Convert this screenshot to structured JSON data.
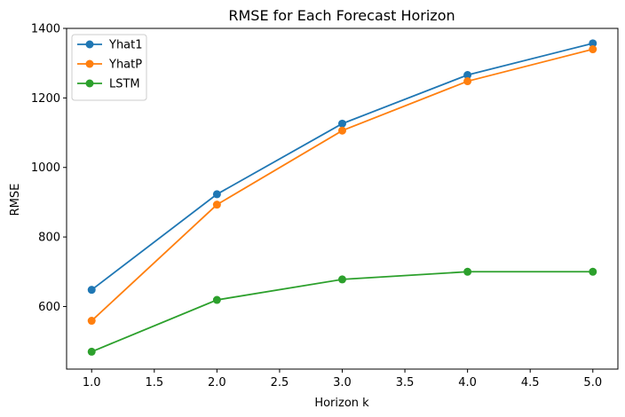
{
  "chart_data": {
    "type": "line",
    "title": "RMSE for Each Forecast Horizon",
    "xlabel": "Horizon k",
    "ylabel": "RMSE",
    "xlim": [
      0.8,
      5.2
    ],
    "ylim": [
      420,
      1400
    ],
    "x_ticks": [
      1.0,
      1.5,
      2.0,
      2.5,
      3.0,
      3.5,
      4.0,
      4.5,
      5.0
    ],
    "x_tick_labels": [
      "1.0",
      "1.5",
      "2.0",
      "2.5",
      "3.0",
      "3.5",
      "4.0",
      "4.5",
      "5.0"
    ],
    "y_ticks": [
      600,
      800,
      1000,
      1200,
      1400
    ],
    "y_tick_labels": [
      "600",
      "800",
      "1000",
      "1200",
      "1400"
    ],
    "grid": false,
    "legend_position": "top-left",
    "x": [
      1,
      2,
      3,
      4,
      5
    ],
    "series": [
      {
        "name": "Yhat1",
        "color": "#1f77b4",
        "values": [
          648,
          923,
          1126,
          1266,
          1357
        ]
      },
      {
        "name": "YhatP",
        "color": "#ff7f0e",
        "values": [
          559,
          893,
          1106,
          1248,
          1340
        ]
      },
      {
        "name": "LSTM",
        "color": "#2ca02c",
        "values": [
          470,
          619,
          678,
          700,
          700
        ]
      }
    ]
  }
}
